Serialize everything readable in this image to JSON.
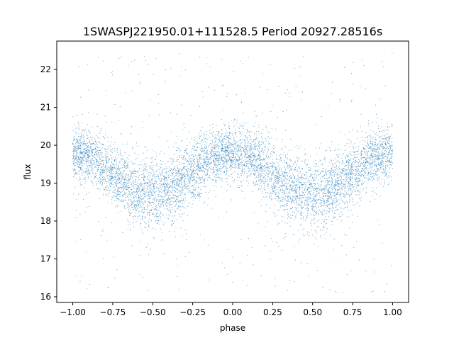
{
  "chart_data": {
    "type": "scatter",
    "title": "1SWASPJ221950.01+111528.5 Period 20927.28516s",
    "xlabel": "phase",
    "ylabel": "flux",
    "xlim": [
      -1.1,
      1.1
    ],
    "ylim": [
      15.85,
      22.75
    ],
    "x_ticks": [
      -1.0,
      -0.75,
      -0.5,
      -0.25,
      0.0,
      0.25,
      0.5,
      0.75,
      1.0
    ],
    "x_tick_labels": [
      "−1.00",
      "−0.75",
      "−0.50",
      "−0.25",
      "0.00",
      "0.25",
      "0.50",
      "0.75",
      "1.00"
    ],
    "y_ticks": [
      16,
      17,
      18,
      19,
      20,
      21,
      22
    ],
    "y_tick_labels": [
      "16",
      "17",
      "18",
      "19",
      "20",
      "21",
      "22"
    ],
    "grid": false,
    "legend": false,
    "marker_color": "#1f77b4",
    "series": [
      {
        "phase_range": [
          -1.0,
          1.0
        ],
        "model": {
          "mean_flux": 19.25,
          "semi_amplitude": 0.55,
          "peak_phases": [
            -1.0,
            0.0,
            1.0
          ],
          "trough_phases": [
            -0.5,
            0.5
          ]
        },
        "bulk_scatter": 0.35,
        "outlier_flux_range": [
          16.1,
          22.5
        ]
      }
    ]
  }
}
